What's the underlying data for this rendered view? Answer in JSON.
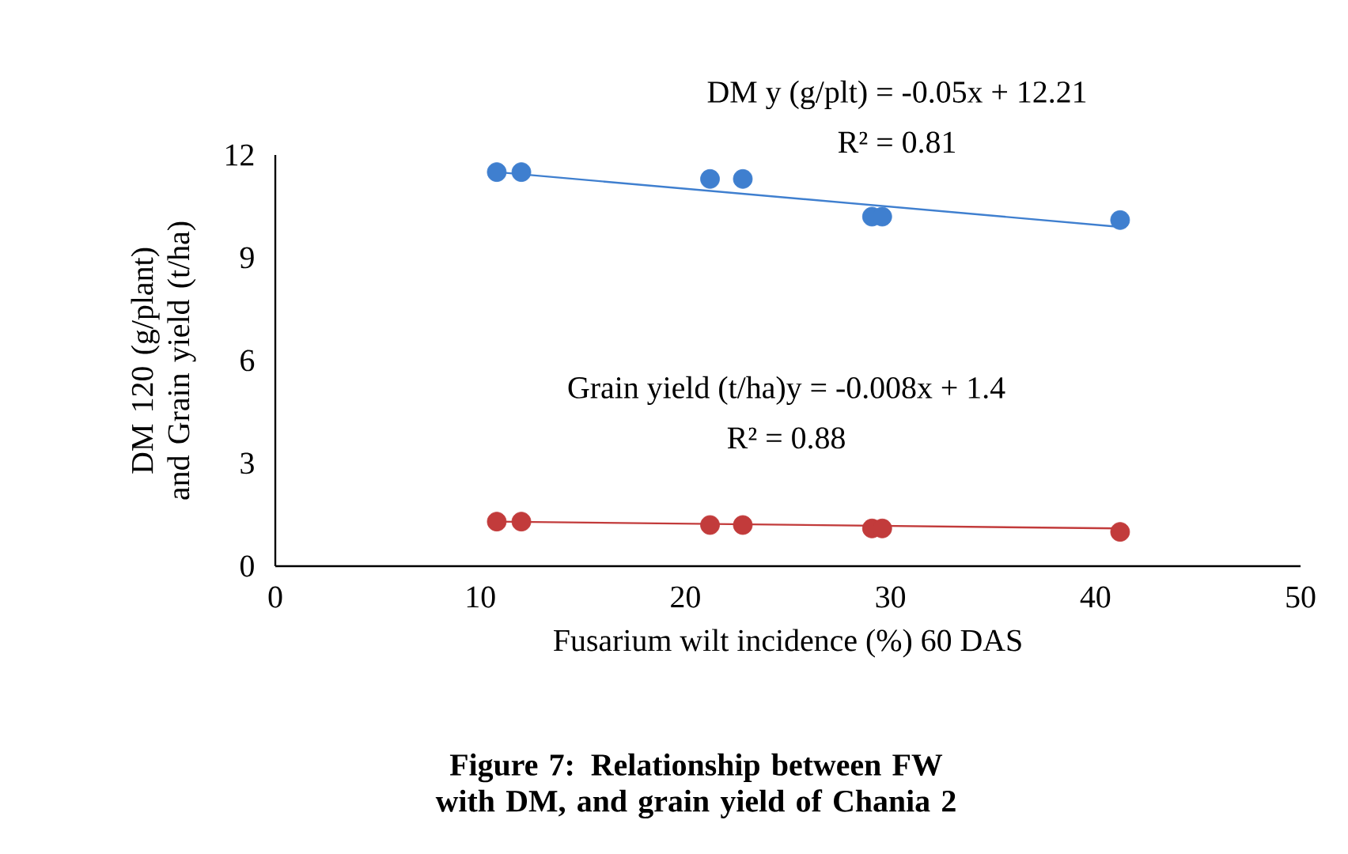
{
  "chart_data": {
    "type": "scatter",
    "title": "**Figure 7: Relationship between  FW with DM, and grain yield of Chania 2**",
    "xlabel": "Fusarium wilt incidence (%) 60 DAS",
    "ylabel": "DM 120 (g/plant) and Grain yield (t/ha)",
    "xlim": [
      0,
      50
    ],
    "xticks": [
      0,
      10,
      20,
      30,
      40,
      50
    ],
    "ylim": [
      0,
      12
    ],
    "yticks": [
      0,
      3,
      6,
      9,
      12
    ],
    "grid": false,
    "x": [
      10.8,
      12.0,
      21.2,
      22.8,
      29.1,
      29.6,
      41.2
    ],
    "series": [
      {
        "marker": "circle",
        "color": "#3f7fcf",
        "values": [
          11.5,
          11.5,
          11.3,
          11.3,
          10.2,
          10.2,
          10.1
        ]
      },
      {
        "marker": "circle",
        "color": "#c23b3b",
        "values": [
          1.3,
          1.3,
          1.2,
          1.2,
          1.1,
          1.1,
          1.0
        ]
      },
      {
        "type": "line",
        "marker": "none",
        "color": "#3f7fcf",
        "values": [
          11.5,
          null,
          null,
          null,
          null,
          null,
          9.9
        ]
      },
      {
        "type": "line",
        "marker": "none",
        "color": "#c23b3b",
        "values": [
          1.3,
          null,
          null,
          null,
          null,
          null,
          1.1
        ]
      }
    ],
    "annotations": [
      "DM y (g/plt) = -0.05x + 12.21",
      "R² = 0.81",
      "Grain yield (t/ha)y = -0.008x + 1.4",
      "R² = 0.88"
    ]
  }
}
